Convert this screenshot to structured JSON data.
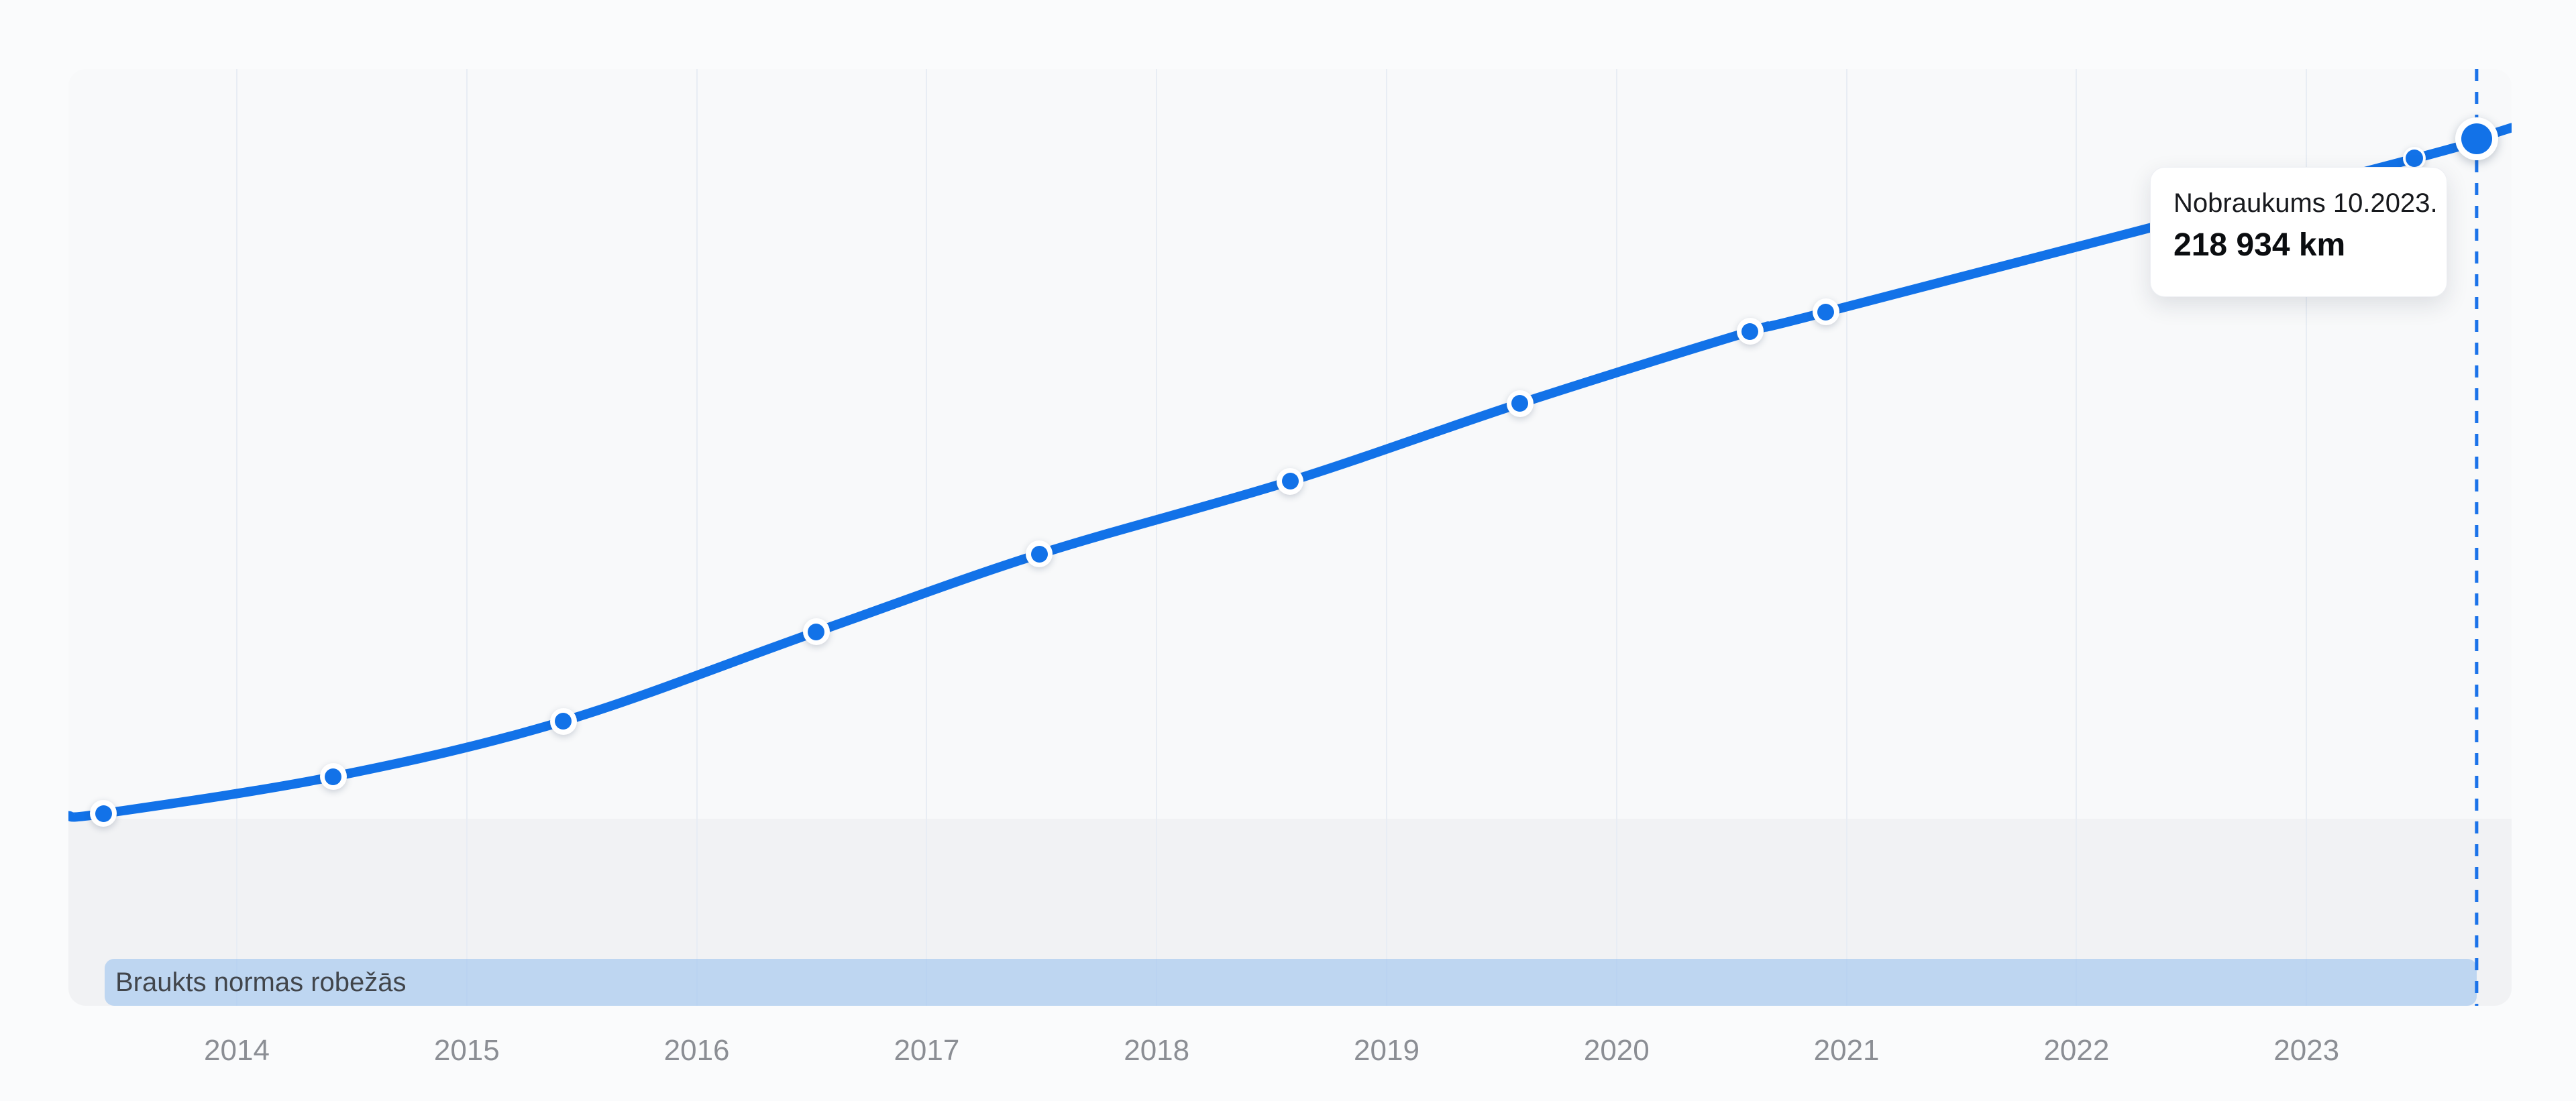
{
  "chart_data": {
    "type": "line",
    "series": [
      {
        "name": "Nobraukums",
        "unit": "km",
        "points": [
          {
            "date_label": "05.2013",
            "year": 2013.42,
            "odometer_km": 149500,
            "marker": "ring"
          },
          {
            "date_label": "06.2014",
            "year": 2014.42,
            "odometer_km": 153300,
            "marker": "ring"
          },
          {
            "date_label": "06.2015",
            "year": 2015.42,
            "odometer_km": 159000,
            "marker": "ring"
          },
          {
            "date_label": "07.2016",
            "year": 2016.52,
            "odometer_km": 168200,
            "marker": "ring"
          },
          {
            "date_label": "07.2017",
            "year": 2017.49,
            "odometer_km": 176200,
            "marker": "ring"
          },
          {
            "date_label": "08.2018",
            "year": 2018.58,
            "odometer_km": 183700,
            "marker": "ring"
          },
          {
            "date_label": "08.2019",
            "year": 2019.58,
            "odometer_km": 191700,
            "marker": "ring"
          },
          {
            "date_label": "08.2020",
            "year": 2020.58,
            "odometer_km": 199100,
            "marker": "ring"
          },
          {
            "date_label": "12.2020",
            "year": 2020.91,
            "odometer_km": 201100,
            "marker": "ring"
          },
          {
            "date_label": "06.2023",
            "year": 2023.47,
            "odometer_km": 216900,
            "marker": "ring_small"
          },
          {
            "date_label": "10.2023",
            "year": 2023.74,
            "odometer_km": 218934,
            "marker": "active"
          }
        ],
        "values_precision": "highlighted point exact (218 934 km at 10.2023); other odometer values and dates estimated from plot positions"
      }
    ],
    "x_axis": {
      "ticks": [
        {
          "label": "2014",
          "year": 2014
        },
        {
          "label": "2015",
          "year": 2015
        },
        {
          "label": "2016",
          "year": 2016
        },
        {
          "label": "2017",
          "year": 2017
        },
        {
          "label": "2018",
          "year": 2018
        },
        {
          "label": "2019",
          "year": 2019
        },
        {
          "label": "2020",
          "year": 2020
        },
        {
          "label": "2021",
          "year": 2021
        },
        {
          "label": "2022",
          "year": 2022
        },
        {
          "label": "2023",
          "year": 2023
        }
      ],
      "gridlines": true
    },
    "y_axis": {
      "visible": false,
      "unit": "km"
    },
    "highlight": {
      "date_label": "10.2023",
      "value_km": 218934,
      "cursor": "dashed-vertical-line"
    },
    "tooltip": {
      "title": "Nobraukums 10.2023.",
      "value": "218 934 km"
    },
    "norm_band_label": "Braukts normas robežās",
    "legend_position": "none",
    "colors": {
      "line": "#1272e8",
      "dashed_cursor": "#1b73e9",
      "plot_background": "#f8f9fa",
      "page_background": "#fafbfc",
      "norm_zone": "#f1f2f4",
      "norm_label_band": "rgba(140,185,238,0.5)",
      "gridline": "#e8edf4",
      "tick_text": "#8b8e94",
      "band_text": "#41454b"
    }
  }
}
